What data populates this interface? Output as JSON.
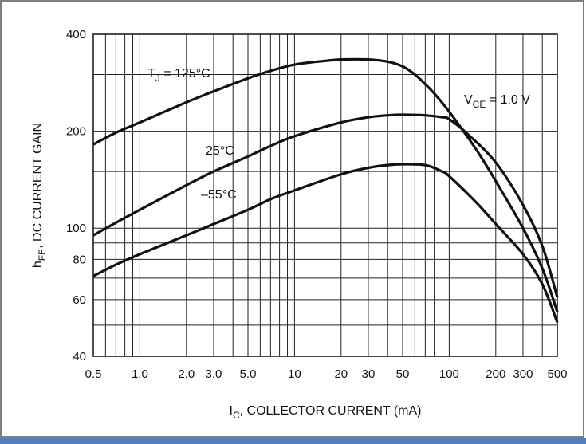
{
  "chart_data": {
    "type": "line",
    "x_scale": "log",
    "y_scale": "log",
    "xlim": [
      0.5,
      500
    ],
    "ylim": [
      40,
      400
    ],
    "grid": true,
    "x_ticks": [
      {
        "value": 0.5,
        "label": "0.5"
      },
      {
        "value": 1,
        "label": "1.0"
      },
      {
        "value": 2,
        "label": "2.0"
      },
      {
        "value": 3,
        "label": "3.0"
      },
      {
        "value": 5,
        "label": "5.0"
      },
      {
        "value": 10,
        "label": "10"
      },
      {
        "value": 20,
        "label": "20"
      },
      {
        "value": 30,
        "label": "30"
      },
      {
        "value": 50,
        "label": "50"
      },
      {
        "value": 100,
        "label": "100"
      },
      {
        "value": 200,
        "label": "200"
      },
      {
        "value": 300,
        "label": "300"
      },
      {
        "value": 500,
        "label": "500"
      }
    ],
    "y_ticks": [
      {
        "value": 40,
        "label": "40"
      },
      {
        "value": 60,
        "label": "60"
      },
      {
        "value": 80,
        "label": "80"
      },
      {
        "value": 100,
        "label": "100"
      },
      {
        "value": 200,
        "label": "200"
      },
      {
        "value": 400,
        "label": "400"
      }
    ],
    "xlabel": {
      "main": "I",
      "sub": "C",
      "rest": ", COLLECTOR CURRENT (mA)"
    },
    "ylabel": {
      "main": "h",
      "sub": "FE",
      "rest": ", DC CURRENT GAIN"
    },
    "annotations": {
      "vce": {
        "main": "V",
        "sub": "CE",
        "rest": " = 1.0 V"
      }
    },
    "series": [
      {
        "name": {
          "main": "T",
          "sub": "J",
          "rest": " = 125°C"
        },
        "points": [
          [
            0.5,
            182
          ],
          [
            0.7,
            198
          ],
          [
            1,
            213
          ],
          [
            2,
            246
          ],
          [
            3,
            266
          ],
          [
            5,
            292
          ],
          [
            7,
            308
          ],
          [
            10,
            322
          ],
          [
            15,
            330
          ],
          [
            20,
            334
          ],
          [
            30,
            334
          ],
          [
            40,
            329
          ],
          [
            50,
            318
          ],
          [
            60,
            300
          ],
          [
            70,
            280
          ],
          [
            80,
            262
          ],
          [
            100,
            230
          ],
          [
            150,
            175
          ],
          [
            200,
            140
          ],
          [
            300,
            100
          ],
          [
            400,
            75
          ],
          [
            500,
            55
          ]
        ]
      },
      {
        "name": {
          "main": "25°C",
          "sub": "",
          "rest": ""
        },
        "points": [
          [
            0.5,
            95
          ],
          [
            0.7,
            104
          ],
          [
            1,
            114
          ],
          [
            2,
            136
          ],
          [
            3,
            150
          ],
          [
            5,
            167
          ],
          [
            7,
            180
          ],
          [
            10,
            193
          ],
          [
            20,
            213
          ],
          [
            30,
            221
          ],
          [
            40,
            224
          ],
          [
            50,
            225
          ],
          [
            70,
            224
          ],
          [
            90,
            221
          ],
          [
            100,
            218
          ],
          [
            130,
            197
          ],
          [
            200,
            160
          ],
          [
            300,
            118
          ],
          [
            400,
            88
          ],
          [
            500,
            61
          ]
        ]
      },
      {
        "name": {
          "main": "–55°C",
          "sub": "",
          "rest": ""
        },
        "points": [
          [
            0.5,
            71
          ],
          [
            0.7,
            77
          ],
          [
            1,
            83
          ],
          [
            2,
            95
          ],
          [
            3,
            103
          ],
          [
            5,
            114
          ],
          [
            7,
            123
          ],
          [
            10,
            131
          ],
          [
            20,
            147
          ],
          [
            30,
            154
          ],
          [
            40,
            157
          ],
          [
            50,
            158
          ],
          [
            70,
            157
          ],
          [
            90,
            150
          ],
          [
            100,
            145
          ],
          [
            150,
            120
          ],
          [
            200,
            103
          ],
          [
            300,
            83
          ],
          [
            400,
            67
          ],
          [
            500,
            51
          ]
        ]
      }
    ]
  }
}
